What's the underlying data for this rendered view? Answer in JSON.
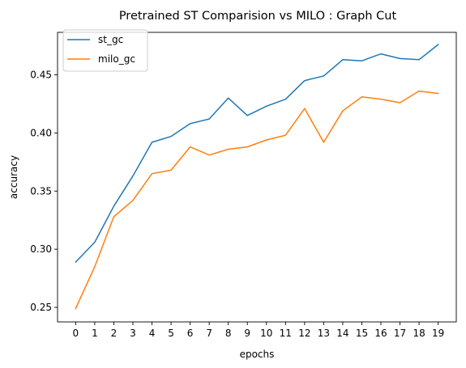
{
  "chart_data": {
    "type": "line",
    "title": "Pretrained ST Comparision vs MILO : Graph Cut",
    "xlabel": "epochs",
    "ylabel": "accuracy",
    "x": [
      0,
      1,
      2,
      3,
      4,
      5,
      6,
      7,
      8,
      9,
      10,
      11,
      12,
      13,
      14,
      15,
      16,
      17,
      18,
      19
    ],
    "xlim": [
      -0.95,
      19.95
    ],
    "ylim": [
      0.2375,
      0.4865
    ],
    "yticks": [
      0.25,
      0.3,
      0.35,
      0.4,
      0.45
    ],
    "ytick_labels": [
      "0.25",
      "0.30",
      "0.35",
      "0.40",
      "0.45"
    ],
    "grid": false,
    "legend_position": "upper left",
    "series": [
      {
        "name": "st_gc",
        "color": "#1f77b4",
        "values": [
          0.289,
          0.306,
          0.337,
          0.363,
          0.392,
          0.397,
          0.408,
          0.412,
          0.43,
          0.415,
          0.423,
          0.429,
          0.445,
          0.449,
          0.463,
          0.462,
          0.468,
          0.464,
          0.463,
          0.476
        ]
      },
      {
        "name": "milo_gc",
        "color": "#ff7f0e",
        "values": [
          0.249,
          0.285,
          0.328,
          0.342,
          0.365,
          0.368,
          0.388,
          0.381,
          0.386,
          0.388,
          0.394,
          0.398,
          0.421,
          0.392,
          0.419,
          0.431,
          0.429,
          0.426,
          0.436,
          0.434
        ]
      }
    ]
  }
}
